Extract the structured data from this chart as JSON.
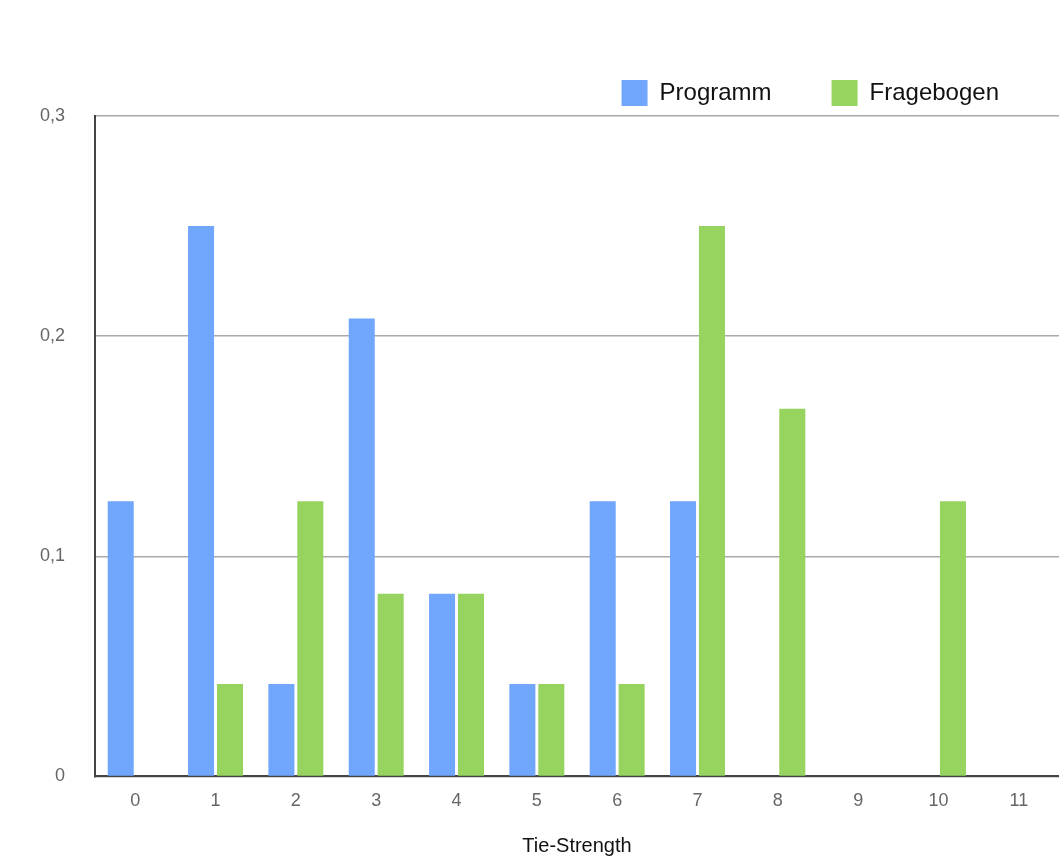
{
  "chart_data": {
    "type": "bar",
    "xlabel": "Tie-Strength",
    "categories": [
      "0",
      "1",
      "2",
      "3",
      "4",
      "5",
      "6",
      "7",
      "8",
      "9",
      "10",
      "11"
    ],
    "series": [
      {
        "name": "Programm",
        "color": "#71a6fd",
        "values": [
          0.125,
          0.25,
          0.042,
          0.208,
          0.083,
          0.042,
          0.125,
          0.125,
          0,
          0,
          0,
          0
        ]
      },
      {
        "name": "Fragebogen",
        "color": "#96d35f",
        "values": [
          0,
          0.042,
          0.125,
          0.083,
          0.083,
          0.042,
          0.042,
          0.25,
          0.167,
          0,
          0.125,
          0
        ]
      }
    ],
    "ylim": [
      0,
      0.3
    ],
    "yticks": [
      0,
      {
        "value": 0.1,
        "label": "0,1"
      },
      {
        "value": 0.2,
        "label": "0,2"
      },
      {
        "value": 0.3,
        "label": "0,3"
      }
    ],
    "grid": "y",
    "legend": "top right"
  }
}
